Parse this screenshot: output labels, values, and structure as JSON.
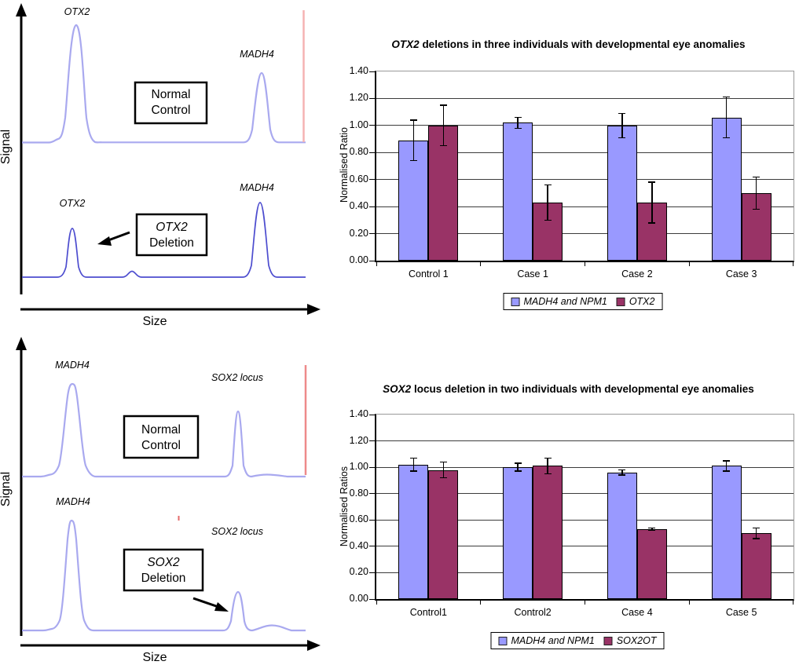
{
  "signal_plots": {
    "otx2_panel": {
      "y_axis_label": "Signal",
      "x_axis_label": "Size",
      "normal_peak1": "OTX2",
      "normal_peak2": "MADH4",
      "normal_box_line1": "Normal",
      "normal_box_line2": "Control",
      "deletion_peak1": "OTX2",
      "deletion_peak2": "MADH4",
      "deletion_box_line1": "OTX2",
      "deletion_box_line2": "Deletion"
    },
    "sox2_panel": {
      "y_axis_label": "Signal",
      "x_axis_label": "Size",
      "normal_peak1": "MADH4",
      "normal_peak2": "SOX2 locus",
      "normal_box_line1": "Normal",
      "normal_box_line2": "Control",
      "deletion_peak1": "MADH4",
      "deletion_peak2": "SOX2 locus",
      "deletion_box_line1": "SOX2",
      "deletion_box_line2": "Deletion"
    }
  },
  "colors": {
    "trace_light": "#a9a9ef",
    "trace_dark": "#4d4dcf",
    "size_marker_pink": "#f5b3b3",
    "size_marker_red": "#ee8a8a",
    "size_marker_tick_red": "#e46b6b",
    "series1": "#9999ff",
    "series2": "#993366"
  },
  "chart_data": [
    {
      "type": "bar",
      "title_italic": "OTX2",
      "title_rest": " deletions in three individuals with developmental eye anomalies",
      "ylabel": "Normalised Ratio",
      "xlabel": "",
      "ylim": [
        0,
        1.4
      ],
      "grid": true,
      "legend_position": "bottom",
      "yticks": [
        {
          "v": 0.0,
          "label": "0.00"
        },
        {
          "v": 0.2,
          "label": "0.20"
        },
        {
          "v": 0.4,
          "label": "0.40"
        },
        {
          "v": 0.6,
          "label": "0.60"
        },
        {
          "v": 0.8,
          "label": "0.80"
        },
        {
          "v": 1.0,
          "label": "1.00"
        },
        {
          "v": 1.2,
          "label": "1.20"
        },
        {
          "v": 1.4,
          "label": "1.40"
        }
      ],
      "categories": [
        "Control 1",
        "Case 1",
        "Case 2",
        "Case 3"
      ],
      "series": [
        {
          "name": "MADH4 and NPM1",
          "color": "#9999ff",
          "values": [
            0.89,
            1.02,
            1.0,
            1.06
          ],
          "errors": [
            0.15,
            0.04,
            0.09,
            0.15
          ]
        },
        {
          "name": "OTX2",
          "color": "#993366",
          "values": [
            1.0,
            0.43,
            0.43,
            0.5
          ],
          "errors": [
            0.15,
            0.13,
            0.15,
            0.12
          ]
        }
      ]
    },
    {
      "type": "bar",
      "title_italic": "SOX2",
      "title_rest": " locus deletion in two individuals with developmental eye anomalies",
      "ylabel": "Normalised Ratios",
      "xlabel": "",
      "ylim": [
        0,
        1.4
      ],
      "grid": true,
      "legend_position": "bottom",
      "yticks": [
        {
          "v": 0.0,
          "label": "0.00"
        },
        {
          "v": 0.2,
          "label": "0.20"
        },
        {
          "v": 0.4,
          "label": "0.40"
        },
        {
          "v": 0.6,
          "label": "0.60"
        },
        {
          "v": 0.8,
          "label": "0.80"
        },
        {
          "v": 1.0,
          "label": "1.00"
        },
        {
          "v": 1.2,
          "label": "1.20"
        },
        {
          "v": 1.4,
          "label": "1.40"
        }
      ],
      "categories": [
        "Control1",
        "Control2",
        "Case 4",
        "Case 5"
      ],
      "series": [
        {
          "name": "MADH4 and NPM1",
          "color": "#9999ff",
          "values": [
            1.02,
            1.0,
            0.96,
            1.01
          ],
          "errors": [
            0.05,
            0.03,
            0.02,
            0.04
          ]
        },
        {
          "name": "SOX2OT",
          "color": "#993366",
          "values": [
            0.98,
            1.01,
            0.53,
            0.5
          ],
          "errors": [
            0.06,
            0.06,
            0.01,
            0.04
          ]
        }
      ]
    }
  ]
}
